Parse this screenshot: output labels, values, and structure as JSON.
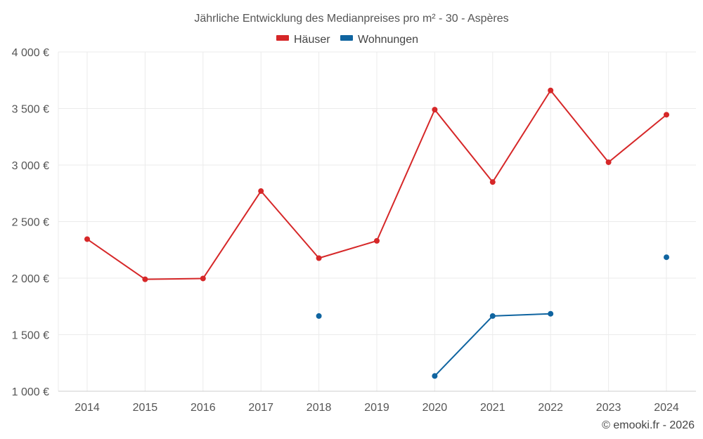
{
  "chart_data": {
    "type": "line",
    "title": "Jährliche Entwicklung des Medianpreises pro m² - 30 - Aspères",
    "xlabel": "",
    "ylabel": "",
    "categories": [
      "2014",
      "2015",
      "2016",
      "2017",
      "2018",
      "2019",
      "2020",
      "2021",
      "2022",
      "2023",
      "2024"
    ],
    "ylim": [
      1000,
      4000
    ],
    "yticks": [
      1000,
      1500,
      2000,
      2500,
      3000,
      3500,
      4000
    ],
    "ytick_labels": [
      "1 000 €",
      "1 500 €",
      "2 000 €",
      "2 500 €",
      "3 000 €",
      "3 500 €",
      "4 000 €"
    ],
    "grid": true,
    "legend_position": "top-center",
    "series": [
      {
        "name": "Häuser",
        "color": "#d62728",
        "values": [
          2345,
          1990,
          1997,
          2770,
          2177,
          2330,
          3490,
          2850,
          3660,
          3025,
          3445
        ]
      },
      {
        "name": "Wohnungen",
        "color": "#0f64a0",
        "values": [
          null,
          null,
          null,
          null,
          1665,
          null,
          1135,
          1665,
          1685,
          null,
          2185
        ]
      }
    ]
  },
  "copyright": "© emooki.fr - 2026"
}
